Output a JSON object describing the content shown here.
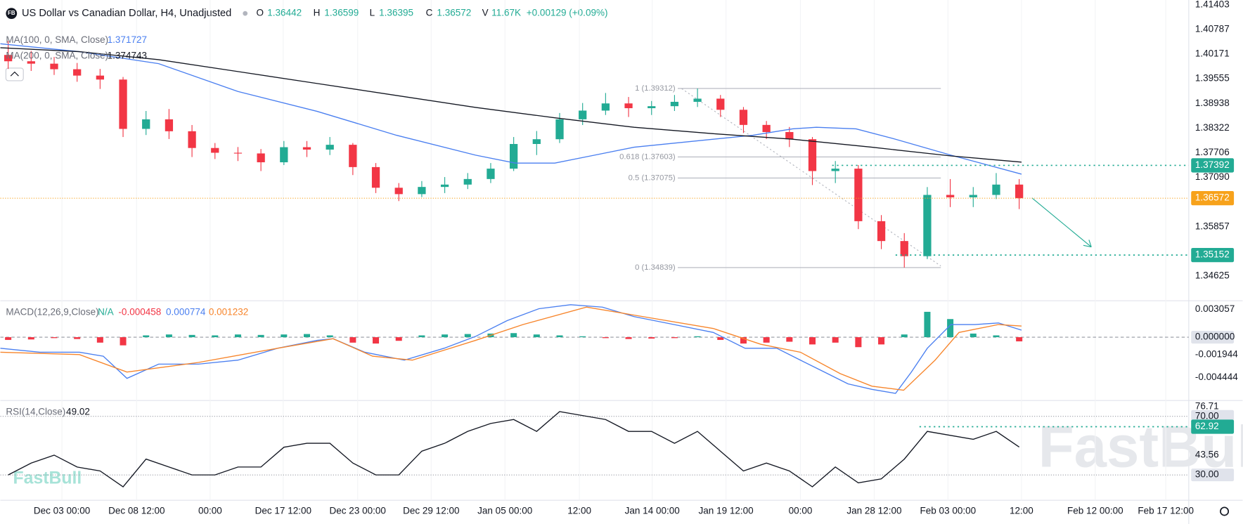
{
  "icon": "FB",
  "watermark": "FastBull",
  "chart_data": [
    {
      "type": "candlestick",
      "title": "US Dollar vs Canadian Dollar, H4, Unadjusted",
      "ohlc": [
        {
          "name": "O",
          "value": 1.36442
        },
        {
          "name": "H",
          "value": 1.36599
        },
        {
          "name": "L",
          "value": 1.36395
        },
        {
          "name": "C",
          "value": 1.36572
        },
        {
          "name": "V",
          "value": 11670,
          "label": "11.67K"
        }
      ],
      "change": "+0.00129 (+0.09%)",
      "up_color": "#22ab94",
      "down_color": "#f23645",
      "x": [
        0,
        1,
        2,
        3,
        4,
        5,
        6,
        7,
        8,
        9,
        10,
        11,
        12,
        13,
        14,
        15,
        16,
        17,
        18,
        19,
        20,
        21,
        22,
        23,
        24,
        25,
        26,
        27,
        28,
        29,
        30,
        31,
        32,
        33,
        34,
        35,
        36,
        37,
        38,
        39,
        40,
        41,
        42,
        43,
        44
      ],
      "open": [
        1.4015,
        1.39992,
        1.39932,
        1.39793,
        1.39634,
        1.39535,
        1.38303,
        1.38542,
        1.38244,
        1.37826,
        1.37707,
        1.3769,
        1.37469,
        1.37846,
        1.37786,
        1.37906,
        1.37349,
        1.36833,
        1.36674,
        1.36853,
        1.36912,
        1.37051,
        1.3731,
        1.37926,
        1.38045,
        1.38542,
        1.3876,
        1.38939,
        1.3882,
        1.3887,
        1.38979,
        1.39058,
        1.3878,
        1.38402,
        1.38224,
        1.38045,
        1.3725,
        1.3731,
        1.35998,
        1.35502,
        1.35124,
        1.36654,
        1.36594,
        1.36654,
        1.36912
      ],
      "high": [
        1.405,
        1.4025,
        1.401,
        1.3995,
        1.398,
        1.396,
        1.3875,
        1.388,
        1.384,
        1.3795,
        1.3785,
        1.378,
        1.38,
        1.38,
        1.381,
        1.3795,
        1.3745,
        1.3695,
        1.37,
        1.371,
        1.372,
        1.3745,
        1.381,
        1.3825,
        1.387,
        1.3895,
        1.392,
        1.391,
        1.39,
        1.3915,
        1.39312,
        1.3915,
        1.3885,
        1.385,
        1.3835,
        1.381,
        1.375,
        1.374,
        1.3615,
        1.357,
        1.3685,
        1.3705,
        1.3685,
        1.372,
        1.3705
      ],
      "low": [
        1.398,
        1.3975,
        1.3965,
        1.3948,
        1.393,
        1.381,
        1.3815,
        1.3805,
        1.376,
        1.3755,
        1.375,
        1.3725,
        1.374,
        1.376,
        1.3765,
        1.3715,
        1.367,
        1.365,
        1.366,
        1.367,
        1.368,
        1.3695,
        1.3725,
        1.3765,
        1.3795,
        1.384,
        1.3865,
        1.386,
        1.3865,
        1.3875,
        1.3885,
        1.386,
        1.382,
        1.3805,
        1.3785,
        1.369,
        1.3695,
        1.358,
        1.353,
        1.34839,
        1.3505,
        1.3635,
        1.3635,
        1.3655,
        1.363
      ],
      "close": [
        1.39992,
        1.39932,
        1.39793,
        1.39634,
        1.39535,
        1.38303,
        1.38542,
        1.38244,
        1.37826,
        1.37707,
        1.3769,
        1.37469,
        1.37846,
        1.37786,
        1.37906,
        1.37349,
        1.36833,
        1.36674,
        1.36853,
        1.36912,
        1.37051,
        1.3731,
        1.37926,
        1.38045,
        1.38542,
        1.3876,
        1.38939,
        1.3882,
        1.3887,
        1.38979,
        1.39058,
        1.3878,
        1.38402,
        1.38224,
        1.38045,
        1.3725,
        1.3731,
        1.35998,
        1.35502,
        1.35124,
        1.36654,
        1.36594,
        1.36654,
        1.36912,
        1.36572
      ],
      "series": [
        {
          "name": "MA(100, 0, SMA, Close)",
          "color": "#4a7ff0",
          "last": 1.371727,
          "x": [
            -0.34,
            3.1,
            6.55,
            10,
            13.45,
            16.9,
            20.34,
            22.07,
            23.79,
            25.52,
            27.24,
            30.69,
            32.41,
            34.14,
            35.17,
            36.9,
            38.62,
            41.03,
            44.1
          ],
          "values": [
            1.40429,
            1.40231,
            1.39932,
            1.39237,
            1.3874,
            1.38144,
            1.37647,
            1.37449,
            1.37449,
            1.37647,
            1.37846,
            1.38045,
            1.38144,
            1.38303,
            1.38343,
            1.38303,
            1.38045,
            1.37647,
            1.371727
          ]
        },
        {
          "name": "MA(200, 0, SMA, Close)",
          "color": "#131722",
          "last": 1.374743,
          "x": [
            -0.34,
            3.1,
            6.55,
            10,
            13.45,
            16.9,
            20.34,
            23.79,
            27.24,
            30.69,
            34.14,
            37.59,
            41.03,
            44.1
          ],
          "values": [
            1.4033,
            1.40231,
            1.40032,
            1.39734,
            1.39436,
            1.39138,
            1.3884,
            1.38581,
            1.38343,
            1.38184,
            1.38045,
            1.37846,
            1.37627,
            1.374743
          ]
        }
      ],
      "fib_x": [
        29.14,
        40.59
      ],
      "fib_levels": [
        {
          "value": 1.39312,
          "label": "1 (1.39312)"
        },
        {
          "value": 1.37603,
          "label": "0.618 (1.37603)"
        },
        {
          "value": 1.37075,
          "label": "0.5 (1.37075)"
        },
        {
          "value": 1.34839,
          "label": "0 (1.34839)"
        }
      ],
      "price_levels": [
        {
          "value": 1.37392,
          "from": 35.86,
          "color": "#22ab94"
        },
        {
          "value": 1.35152,
          "from": 38.62,
          "color": "#22ab94"
        }
      ],
      "last_price": 1.36572,
      "last_price_color": "#f7a21b",
      "xlim": [
        -0.34,
        51.38
      ],
      "xticks": [
        {
          "value": 2.34,
          "label": "Dec 03 00:00"
        },
        {
          "value": 5.59,
          "label": "Dec 08 12:00"
        },
        {
          "value": 8.79,
          "label": "00:00"
        },
        {
          "value": 11.97,
          "label": "Dec 17 12:00"
        },
        {
          "value": 15.21,
          "label": "Dec 23 00:00"
        },
        {
          "value": 18.41,
          "label": "Dec 29 12:00"
        },
        {
          "value": 21.62,
          "label": "Jan 05 00:00"
        },
        {
          "value": 24.86,
          "label": "12:00"
        },
        {
          "value": 28.03,
          "label": "Jan 14 00:00"
        },
        {
          "value": 31.24,
          "label": "Jan 19 12:00"
        },
        {
          "value": 34.48,
          "label": "00:00"
        },
        {
          "value": 37.69,
          "label": "Jan 28 12:00"
        },
        {
          "value": 40.9,
          "label": "Feb 03 00:00"
        },
        {
          "value": 44.1,
          "label": "12:00"
        },
        {
          "value": 47.31,
          "label": "Feb 12 00:00"
        },
        {
          "value": 50.38,
          "label": "Feb 17 12:00"
        }
      ],
      "ylim": [
        1.34089,
        1.41522
      ],
      "yticks": [
        1.41403,
        1.40787,
        1.40171,
        1.39555,
        1.38938,
        1.38322,
        1.37706,
        {
          "value": 1.3709,
          "label": "1.37090"
        },
        1.35857,
        1.34625
      ]
    },
    {
      "type": "macd",
      "title": "MACD(12,26,9,Close)",
      "status": "N/A",
      "status_color": "#22ab94",
      "histogram": {
        "up_color": "#22ab94",
        "down_color": "#f23645",
        "last": -0.000458,
        "x": [
          0,
          1,
          2,
          3,
          4,
          5,
          6,
          7,
          8,
          9,
          10,
          11,
          12,
          13,
          14,
          15,
          16,
          17,
          18,
          19,
          20,
          21,
          22,
          23,
          24,
          25,
          26,
          27,
          28,
          29,
          30,
          31,
          32,
          33,
          34,
          35,
          36,
          37,
          38,
          39,
          40,
          41,
          42,
          43,
          44
        ],
        "values": [
          -0.0003,
          -0.00025,
          -0.0001,
          -0.0002,
          -0.0006,
          -0.0009,
          0.0002,
          0.0003,
          0.00025,
          0.0002,
          0.0003,
          0.00025,
          0.0003,
          0.00035,
          0.0002,
          -0.0006,
          -0.0007,
          -0.0004,
          0.0002,
          0.0003,
          0.00035,
          0.0004,
          0.00045,
          0.0003,
          0.0002,
          0.0001,
          -0.0001,
          -0.0002,
          -0.00015,
          -0.0001,
          0.0001,
          -0.0003,
          -0.0007,
          -0.0006,
          -0.0005,
          -0.0008,
          -0.0006,
          -0.0011,
          -0.0008,
          0.0003,
          0.0028,
          0.002,
          0.0004,
          0.0002,
          -0.000458
        ]
      },
      "series": [
        {
          "color": "#4a7ff0",
          "last": 0.000774,
          "x": [
            -0.34,
            1.38,
            3.1,
            4.14,
            5.17,
            6.55,
            8.28,
            10,
            11.72,
            13.45,
            14.14,
            15.52,
            17.24,
            18.97,
            20.34,
            21.72,
            23.1,
            24.48,
            25.86,
            27.24,
            28.97,
            30.69,
            32.07,
            33.45,
            34.48,
            35.52,
            36.55,
            37.59,
            38.62,
            39.31,
            40,
            41.03,
            42.07,
            43.1,
            44.1
          ],
          "values": [
            -0.00122,
            -0.00166,
            -0.00166,
            -0.0021,
            -0.00454,
            -0.00297,
            -0.00297,
            -0.00253,
            -0.00122,
            -0.00035,
            -0.00017,
            -0.00166,
            -0.00253,
            -0.00122,
            9e-05,
            0.00183,
            0.00314,
            0.00358,
            0.00332,
            0.00227,
            0.0014,
            0.00052,
            -0.00122,
            -0.00122,
            -0.00253,
            -0.00384,
            -0.00515,
            -0.00576,
            -0.0062,
            -0.00384,
            -0.00122,
            0.0014,
            0.0014,
            0.00157,
            0.000774
          ]
        },
        {
          "color": "#f7852b",
          "last": 0.001232,
          "x": [
            -0.34,
            3.1,
            5.17,
            8.28,
            11.72,
            14.14,
            15.86,
            17.59,
            20.34,
            22.41,
            25.17,
            27.24,
            30.69,
            32.76,
            34.48,
            36.21,
            37.59,
            38.97,
            40.34,
            41.38,
            43.1,
            44.1
          ],
          "values": [
            -0.00166,
            -0.00192,
            -0.00384,
            -0.00279,
            -0.00122,
            -0.00017,
            -0.0021,
            -0.00253,
            -0.00035,
            0.0014,
            0.00332,
            0.00244,
            0.00096,
            -0.00079,
            -0.00166,
            -0.00402,
            -0.00541,
            -0.00585,
            -0.00253,
            0.00052,
            0.0014,
            0.001232
          ]
        }
      ],
      "ylim": [
        -0.0069,
        0.00393
      ],
      "yticks": [
        0.003057,
        {
          "value": 0,
          "label": "0.000000"
        },
        -0.001944,
        -0.004444
      ]
    },
    {
      "type": "line",
      "title": "RSI(14,Close)",
      "series": [
        {
          "color": "#131722",
          "last": 49.02,
          "x": [
            0,
            1,
            2,
            3,
            4,
            5,
            6,
            7,
            8,
            9,
            10,
            11,
            12,
            13,
            14,
            15,
            16,
            17,
            18,
            19,
            20,
            21,
            22,
            23,
            24,
            25,
            26,
            27,
            28,
            29,
            30,
            31,
            32,
            33,
            34,
            35,
            36,
            37,
            38,
            39,
            40,
            41,
            42,
            43,
            44
          ],
          "values": [
            30.0,
            38.11,
            43.51,
            35.41,
            32.7,
            21.89,
            40.81,
            35.41,
            30.0,
            30.0,
            35.41,
            35.41,
            48.92,
            51.62,
            51.62,
            38.11,
            30.0,
            30.0,
            46.22,
            51.62,
            59.73,
            65.14,
            67.84,
            59.73,
            73.24,
            70.54,
            67.84,
            59.73,
            59.73,
            51.62,
            59.73,
            46.22,
            32.7,
            38.11,
            32.7,
            21.89,
            35.41,
            24.59,
            27.3,
            40.81,
            59.73,
            57.03,
            54.32,
            59.73,
            49.02
          ]
        }
      ],
      "level": {
        "value": 62.92,
        "from": 39.66,
        "color": "#22ab94"
      },
      "ylim": [
        12.7,
        80.27
      ],
      "yticks": [
        76.71,
        {
          "value": 70,
          "label": "70.00"
        },
        43.56,
        {
          "value": 30,
          "label": "30.00"
        }
      ]
    }
  ]
}
